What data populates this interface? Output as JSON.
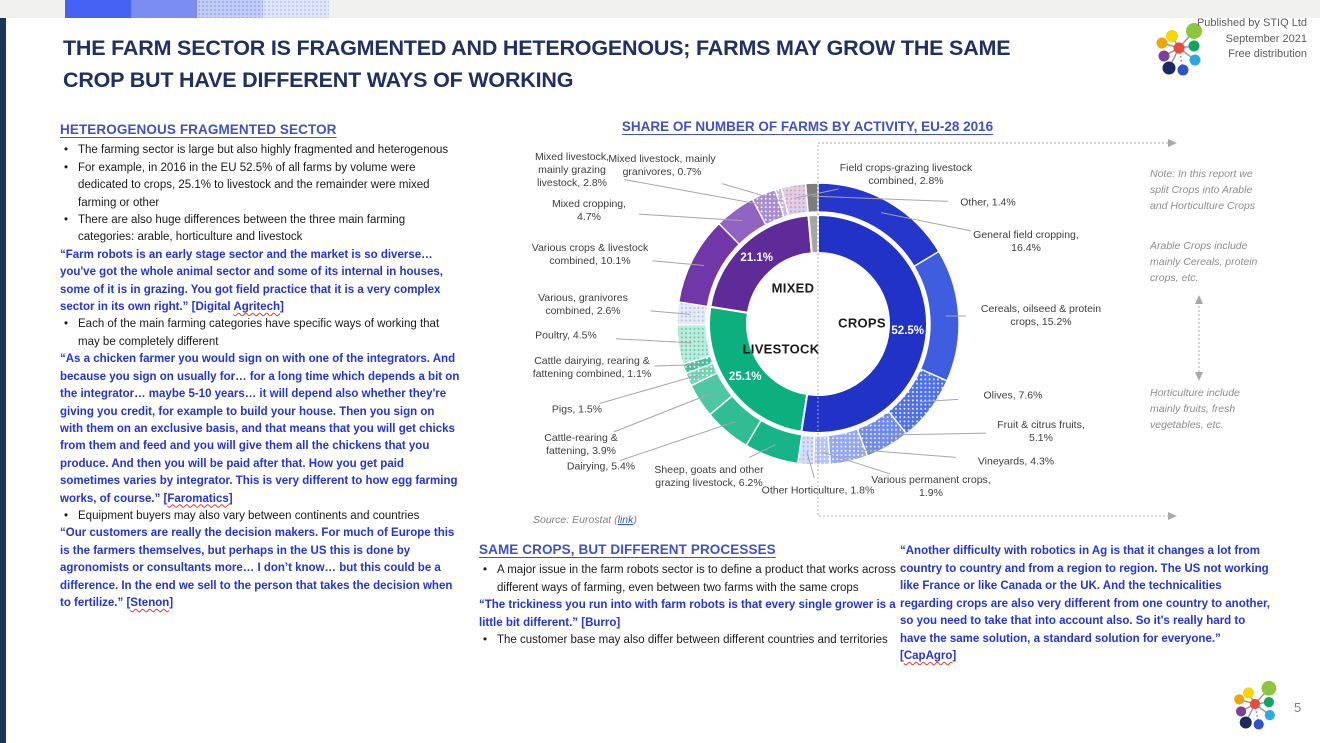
{
  "header": {
    "title_lines": [
      "THE FARM SECTOR IS FRAGMENTED AND HETEROGENOUS; FARMS MAY GROW THE SAME",
      "CROP BUT HAVE DIFFERENT WAYS OF WORKING"
    ],
    "publisher_lines": [
      "Published by STIQ Ltd",
      "September 2021",
      "Free distribution"
    ]
  },
  "page": {
    "number": "5"
  },
  "left_column": {
    "heading": "HETEROGENOUS FRAGMENTED SECTOR",
    "items": [
      {
        "type": "bullet",
        "text": "The farming sector is large but also highly fragmented and heterogenous"
      },
      {
        "type": "bullet",
        "text": "For example, in 2016 in the EU 52.5% of all farms by volume were dedicated to crops, 25.1% to livestock and the remainder were mixed farming or other"
      },
      {
        "type": "bullet",
        "text": "There are also huge differences between the three main farming categories: arable, horticulture and livestock"
      },
      {
        "type": "quote",
        "text": "“Farm robots is an early stage sector and the market is so diverse… you've got the whole animal sector and some of its internal in houses, some of it is in grazing. You got field practice that it is a very complex sector in its own right.”",
        "attr_prefix": "[",
        "attr_word": "Digital Agritech",
        "attr_suffix": "]",
        "flag": "Agritech"
      },
      {
        "type": "bullet",
        "text": "Each of the main farming categories have specific ways of working that may be completely different"
      },
      {
        "type": "quote",
        "text": "“As a chicken farmer you would sign on with one of the integrators. And because you sign on usually for… for a long time which depends a bit on the integrator… maybe 5-10 years… it will depend also whether they're giving you credit, for example to build your house. Then you sign on with them on an exclusive basis, and that means that you will get chicks from them and feed and you will give them all the chickens that you produce. And then you will be paid after that. How you get paid sometimes varies by integrator. This is very different to how egg farming works, of course.”",
        "attr_prefix": "[",
        "attr_word": "Faromatics",
        "attr_suffix": "]",
        "flag": "Faromatics"
      },
      {
        "type": "bullet",
        "text": "Equipment buyers may also vary between continents and countries"
      },
      {
        "type": "quote",
        "text": "“Our customers are really the decision makers. For much of Europe this is the farmers themselves, but perhaps in the US this is done by agronomists or consultants more… I don’t know… but this could be a difference. In the end we sell to the person that takes the decision when to fertilize.”",
        "attr_prefix": "[",
        "attr_word": "Stenon",
        "attr_suffix": "]",
        "flag": "Stenon"
      }
    ]
  },
  "mid_section": {
    "heading": "SAME CROPS, BUT DIFFERENT PROCESSES",
    "items": [
      {
        "type": "bullet",
        "text": "A major issue in the farm robots sector is to define a product that works across different ways of farming, even between two farms with the same crops"
      },
      {
        "type": "quote",
        "text": "“The trickiness you run into with farm robots is that every single grower is a little bit different.”",
        "attr_prefix": "[",
        "attr_word": "Burro",
        "attr_suffix": "]",
        "flag": ""
      },
      {
        "type": "bullet",
        "text": "The customer base may also differ between different countries and territories"
      }
    ]
  },
  "right_quote": {
    "text": "“Another difficulty with robotics in Ag is that it changes a lot from country to country and from a region to region. The US not working like France or like Canada or the UK. And the technicalities regarding crops are also very different from one country to another, so you need to take that into account also. So it's really hard to have the same solution, a standard solution for everyone.”",
    "attr_prefix": "[",
    "attr_word": "CapAgro",
    "attr_suffix": "]",
    "flag": "CapAgro"
  },
  "chart_data": {
    "type": "pie",
    "variant": "double-ring-donut",
    "title": "SHARE OF NUMBER OF FARMS BY ACTIVITY, EU-28 2016",
    "source": {
      "prefix": "Source: Eurostat (",
      "link": "link",
      "suffix": ")"
    },
    "inner_ring": [
      {
        "label": "CROPS",
        "value": 52.5,
        "pct": "52.5%",
        "color": "#2132c7"
      },
      {
        "label": "LIVESTOCK",
        "value": 25.1,
        "pct": "25.1%",
        "color": "#0bb07e"
      },
      {
        "label": "MIXED",
        "value": 21.1,
        "pct": "21.1%",
        "color": "#5f2b98"
      },
      {
        "label": "Other",
        "value": 1.4,
        "pct": "",
        "color": "#a6a6a6"
      }
    ],
    "outer_ring": [
      {
        "label": "General field cropping",
        "value": 16.4,
        "color": "#2536cb"
      },
      {
        "label": "Cereals, oilseed & protein crops",
        "value": 15.2,
        "color": "#3e5edf"
      },
      {
        "label": "Olives",
        "value": 7.6,
        "color": "#4f70e6",
        "dot": "#ffffff"
      },
      {
        "label": "Fruit & citrus fruits",
        "value": 5.1,
        "color": "#6e8aec",
        "dot": "#ffffff"
      },
      {
        "label": "Vineyards",
        "value": 4.3,
        "color": "#93a8f1",
        "dot": "#ffffff"
      },
      {
        "label": "Various permanent crops",
        "value": 1.9,
        "color": "#b4c2f6",
        "dot": "#ffffff"
      },
      {
        "label": "Other Horticulture",
        "value": 1.8,
        "color": "#d7defa",
        "dot": "#9fb0f0"
      },
      {
        "label": "Sheep, goats and other grazing livestock",
        "value": 6.2,
        "color": "#19b389"
      },
      {
        "label": "Dairying",
        "value": 5.4,
        "color": "#30bd93"
      },
      {
        "label": "Cattle-rearing & fattening",
        "value": 3.9,
        "color": "#4fc7a2"
      },
      {
        "label": "Pigs",
        "value": 1.5,
        "color": "#71d2b4",
        "dot": "#ffffff"
      },
      {
        "label": "Cattle dairying, rearing & fattening combined",
        "value": 1.1,
        "color": "#3fc29a",
        "dot": "#ffffff"
      },
      {
        "label": "Poultry",
        "value": 4.5,
        "color": "#bdebdb",
        "dot": "#4fc7a2"
      },
      {
        "label": "Various, granivores combined",
        "value": 2.6,
        "color": "#e7ebf7",
        "dot": "#aab8e0"
      },
      {
        "label": "Various crops & livestock combined",
        "value": 10.1,
        "color": "#7137a9"
      },
      {
        "label": "Mixed cropping",
        "value": 4.7,
        "color": "#9263c2"
      },
      {
        "label": "Mixed livestock, mainly grazing livestock",
        "value": 2.8,
        "color": "#a98bd1",
        "dot": "#ffffff"
      },
      {
        "label": "Mixed livestock, mainly granivores",
        "value": 0.7,
        "color": "#c9b7e3",
        "dot": "#ffffff"
      },
      {
        "label": "Field crops-grazing livestock combined",
        "value": 2.8,
        "color": "#d9d0ee",
        "dot": "#ef8f72"
      },
      {
        "label": "Other",
        "value": 1.4,
        "color": "#7d7d7d"
      }
    ],
    "notes": [
      "Note: In this report we split Crops into Arable and Horticulture Crops",
      "Arable Crops include mainly Cereals, protein crops, etc.",
      "Horticulture include mainly fruits, fresh vegetables, etc."
    ],
    "legend_position": "callout-labels",
    "grid": false
  }
}
